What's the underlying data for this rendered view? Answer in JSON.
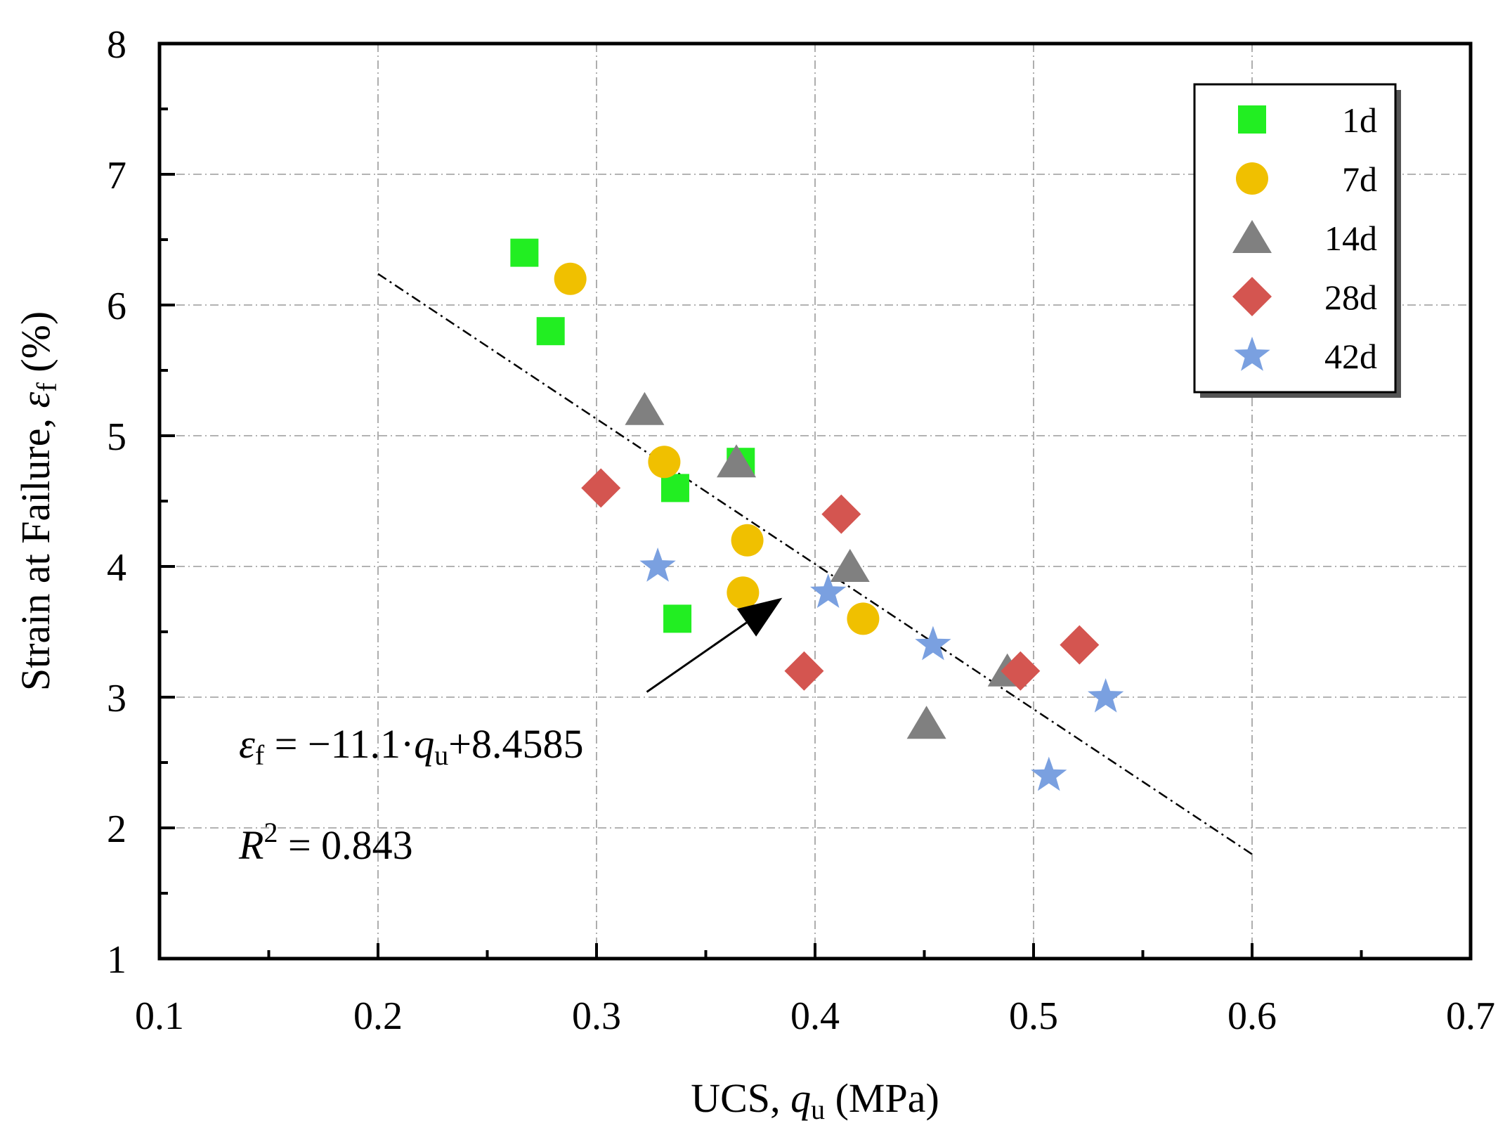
{
  "chart_data": {
    "type": "scatter",
    "xlabel": {
      "prefix": "UCS, ",
      "var": "q",
      "sub": "u",
      "suffix": " (MPa)"
    },
    "ylabel": {
      "prefix": "Strain at Failure, ",
      "var": "ε",
      "sub": "f",
      "suffix": " (%)"
    },
    "xlim": [
      0.1,
      0.7
    ],
    "ylim": [
      1,
      8
    ],
    "xticks": [
      0.1,
      0.2,
      0.3,
      0.4,
      0.5,
      0.6,
      0.7
    ],
    "xtick_labels": [
      "0.1",
      "0.2",
      "0.3",
      "0.4",
      "0.5",
      "0.6",
      "0.7"
    ],
    "yticks": [
      1,
      2,
      3,
      4,
      5,
      6,
      7,
      8
    ],
    "ytick_labels": [
      "1",
      "2",
      "3",
      "4",
      "5",
      "6",
      "7",
      "8"
    ],
    "grid": true,
    "legend_position": "top-right",
    "series": [
      {
        "name": "1d",
        "marker": "square",
        "color": "#22ee22",
        "points": [
          [
            0.267,
            6.4
          ],
          [
            0.279,
            5.8
          ],
          [
            0.336,
            4.6
          ],
          [
            0.366,
            4.8
          ],
          [
            0.337,
            3.6
          ]
        ]
      },
      {
        "name": "7d",
        "marker": "circle",
        "color": "#f0c000",
        "points": [
          [
            0.288,
            6.2
          ],
          [
            0.331,
            4.8
          ],
          [
            0.369,
            4.2
          ],
          [
            0.367,
            3.8
          ],
          [
            0.422,
            3.6
          ]
        ]
      },
      {
        "name": "14d",
        "marker": "triangle",
        "color": "#808080",
        "points": [
          [
            0.322,
            5.2
          ],
          [
            0.364,
            4.8
          ],
          [
            0.416,
            4.0
          ],
          [
            0.451,
            2.8
          ],
          [
            0.488,
            3.2
          ]
        ]
      },
      {
        "name": "28d",
        "marker": "diamond",
        "color": "#d45550",
        "points": [
          [
            0.302,
            4.6
          ],
          [
            0.412,
            4.4
          ],
          [
            0.395,
            3.2
          ],
          [
            0.494,
            3.2
          ],
          [
            0.521,
            3.4
          ]
        ]
      },
      {
        "name": "42d",
        "marker": "star",
        "color": "#7aa0e0",
        "points": [
          [
            0.328,
            4.0
          ],
          [
            0.406,
            3.8
          ],
          [
            0.454,
            3.4
          ],
          [
            0.533,
            3.0
          ],
          [
            0.507,
            2.4
          ]
        ]
      }
    ],
    "fit_line": {
      "x": [
        0.2,
        0.6
      ],
      "y": [
        6.2385,
        1.7985
      ],
      "slope": -11.1,
      "intercept": 8.4585
    },
    "annotation": {
      "arrow_from": [
        0.323,
        3.04
      ],
      "arrow_to": [
        0.385,
        3.76
      ]
    },
    "equation": {
      "lhs_var": "ε",
      "lhs_sub": "f",
      "rhs_pre": " = −11.1·",
      "rhs_var": "q",
      "rhs_sub": "u",
      "rhs_post": "+8.4585"
    },
    "r_squared": {
      "var": "R",
      "sup": "2",
      "text": " = 0.843"
    }
  }
}
